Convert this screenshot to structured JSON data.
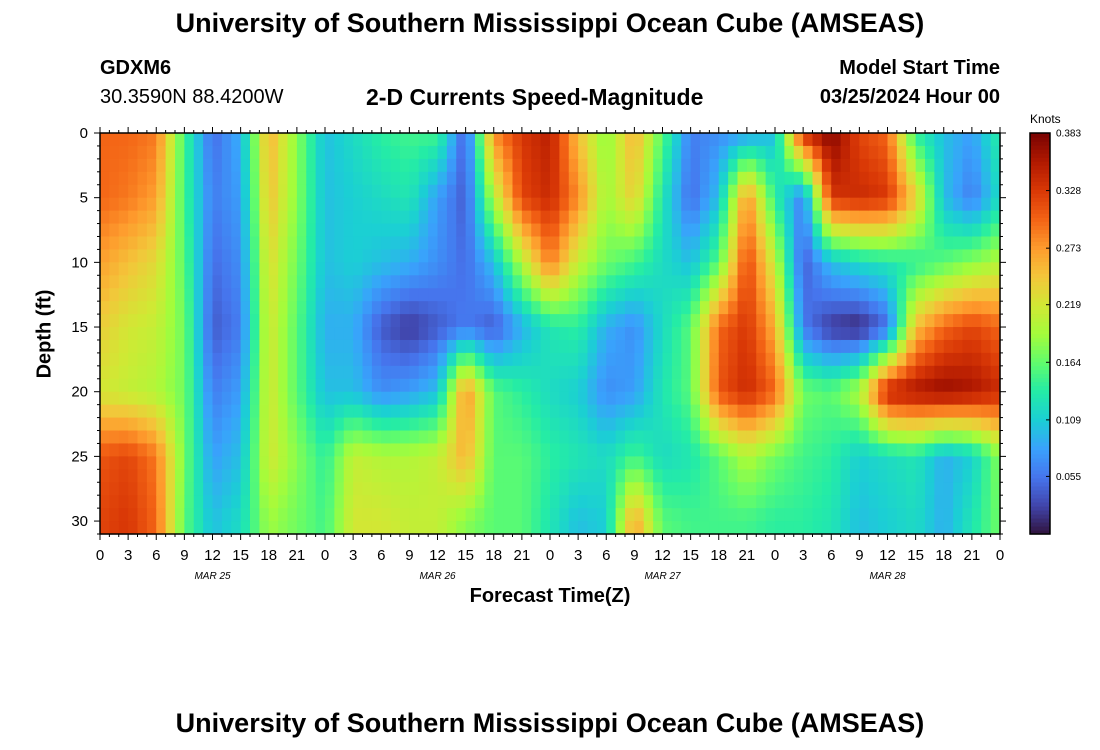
{
  "header": {
    "title": "University of Southern Mississippi Ocean Cube (AMSEAS)",
    "station": "GDXM6",
    "coords": "30.3590N  88.4200W",
    "subtitle": "2-D Currents Speed-Magnitude",
    "model_start_label": "Model Start Time",
    "model_start_value": "03/25/2024 Hour 00"
  },
  "footer": {
    "title": "University of Southern Mississippi Ocean Cube (AMSEAS)"
  },
  "colors": {
    "colormap": [
      "#30123b",
      "#4145ab",
      "#4675ed",
      "#39a2fc",
      "#1bcfd4",
      "#24eca6",
      "#61fc6c",
      "#a4fc3b",
      "#d1e834",
      "#f3c63a",
      "#fe9b2d",
      "#f36315",
      "#d93806",
      "#b11901",
      "#7a0402"
    ]
  },
  "chart_data": {
    "type": "heatmap",
    "title": "2-D Currents Speed-Magnitude",
    "xlabel": "Forecast Time(Z)",
    "ylabel": "Depth (ft)",
    "colorbar_label": "Knots",
    "x_hours_range": [
      0,
      96
    ],
    "y_range": [
      0,
      31
    ],
    "y_inverted": true,
    "value_range": [
      0.0,
      0.383
    ],
    "x_tick_labels": [
      "0",
      "3",
      "6",
      "9",
      "12",
      "15",
      "18",
      "21",
      "0",
      "3",
      "6",
      "9",
      "12",
      "15",
      "18",
      "21",
      "0",
      "3",
      "6",
      "9",
      "12",
      "15",
      "18",
      "21",
      "0",
      "3",
      "6",
      "9",
      "12",
      "15",
      "18",
      "21",
      "0"
    ],
    "date_labels": [
      {
        "hour": 12,
        "label": "MAR 25"
      },
      {
        "hour": 36,
        "label": "MAR 26"
      },
      {
        "hour": 60,
        "label": "MAR 27"
      },
      {
        "hour": 84,
        "label": "MAR 28"
      }
    ],
    "y_ticks": [
      0,
      5,
      10,
      15,
      20,
      25,
      30
    ],
    "colorbar_ticks": [
      "0.055",
      "0.109",
      "0.164",
      "0.219",
      "0.273",
      "0.328",
      "0.383"
    ],
    "field_keypoints": {
      "depths_ft": [
        0,
        5,
        10,
        15,
        20,
        25,
        30
      ],
      "hours": [
        0,
        3,
        6,
        9,
        12,
        15,
        18,
        21,
        24,
        27,
        30,
        33,
        36,
        39,
        42,
        45,
        48,
        51,
        54,
        57,
        60,
        63,
        66,
        69,
        72,
        75,
        78,
        81,
        84,
        87,
        90,
        93,
        96
      ],
      "values_knots": [
        [
          0.3,
          0.3,
          0.29,
          0.15,
          0.05,
          0.09,
          0.26,
          0.18,
          0.1,
          0.12,
          0.14,
          0.15,
          0.15,
          0.04,
          0.28,
          0.33,
          0.35,
          0.25,
          0.18,
          0.26,
          0.16,
          0.06,
          0.07,
          0.08,
          0.1,
          0.34,
          0.38,
          0.32,
          0.3,
          0.14,
          0.1,
          0.08,
          0.14
        ],
        [
          0.3,
          0.29,
          0.27,
          0.15,
          0.06,
          0.08,
          0.25,
          0.18,
          0.1,
          0.11,
          0.12,
          0.13,
          0.08,
          0.04,
          0.2,
          0.32,
          0.34,
          0.28,
          0.19,
          0.24,
          0.13,
          0.05,
          0.1,
          0.28,
          0.14,
          0.06,
          0.33,
          0.34,
          0.33,
          0.24,
          0.1,
          0.06,
          0.12
        ],
        [
          0.27,
          0.25,
          0.23,
          0.16,
          0.05,
          0.07,
          0.23,
          0.17,
          0.1,
          0.11,
          0.1,
          0.09,
          0.07,
          0.05,
          0.1,
          0.2,
          0.29,
          0.21,
          0.17,
          0.15,
          0.12,
          0.1,
          0.16,
          0.32,
          0.21,
          0.04,
          0.1,
          0.12,
          0.13,
          0.14,
          0.16,
          0.18,
          0.2
        ],
        [
          0.24,
          0.22,
          0.21,
          0.17,
          0.04,
          0.06,
          0.22,
          0.16,
          0.09,
          0.09,
          0.04,
          0.02,
          0.04,
          0.06,
          0.04,
          0.09,
          0.13,
          0.14,
          0.09,
          0.07,
          0.12,
          0.16,
          0.3,
          0.33,
          0.26,
          0.06,
          0.02,
          0.01,
          0.05,
          0.25,
          0.3,
          0.32,
          0.3
        ],
        [
          0.22,
          0.21,
          0.2,
          0.17,
          0.06,
          0.08,
          0.22,
          0.16,
          0.1,
          0.1,
          0.07,
          0.08,
          0.1,
          0.28,
          0.16,
          0.14,
          0.12,
          0.11,
          0.07,
          0.08,
          0.13,
          0.16,
          0.31,
          0.34,
          0.3,
          0.17,
          0.16,
          0.2,
          0.35,
          0.36,
          0.37,
          0.36,
          0.34
        ],
        [
          0.31,
          0.32,
          0.29,
          0.17,
          0.08,
          0.1,
          0.22,
          0.18,
          0.14,
          0.21,
          0.2,
          0.2,
          0.21,
          0.26,
          0.16,
          0.16,
          0.14,
          0.13,
          0.12,
          0.15,
          0.12,
          0.13,
          0.16,
          0.2,
          0.17,
          0.15,
          0.14,
          0.11,
          0.12,
          0.13,
          0.09,
          0.11,
          0.18
        ],
        [
          0.32,
          0.33,
          0.3,
          0.16,
          0.1,
          0.12,
          0.19,
          0.17,
          0.15,
          0.22,
          0.22,
          0.21,
          0.21,
          0.18,
          0.16,
          0.16,
          0.13,
          0.1,
          0.11,
          0.27,
          0.16,
          0.15,
          0.15,
          0.15,
          0.14,
          0.14,
          0.13,
          0.1,
          0.11,
          0.12,
          0.09,
          0.13,
          0.17
        ]
      ]
    }
  }
}
